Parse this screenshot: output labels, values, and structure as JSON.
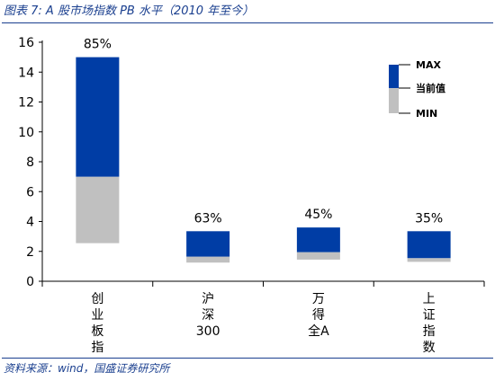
{
  "title": "图表 7:  A 股市场指数 PB 水平（2010 年至今）",
  "source": "资料来源：wind，国盛证券研究所",
  "colors": {
    "upper": "#003da5",
    "lower": "#c0c0c0",
    "title": "#1a3f8f"
  },
  "chart_data": {
    "type": "bar",
    "subtype": "floating-range-split-at-current",
    "categories": [
      "创业板指",
      "沪深300",
      "万得全A",
      "上证指数"
    ],
    "x_tick_labels": [
      [
        "创",
        "业",
        "板",
        "指"
      ],
      [
        "沪",
        "深",
        "300"
      ],
      [
        "万",
        "得",
        "全A"
      ],
      [
        "上",
        "证",
        "指",
        "数"
      ]
    ],
    "max": [
      15.0,
      3.35,
      3.6,
      3.35
    ],
    "current": [
      7.0,
      1.65,
      1.95,
      1.55
    ],
    "min": [
      2.55,
      1.25,
      1.45,
      1.3
    ],
    "percentile_labels": [
      "85%",
      "63%",
      "45%",
      "35%"
    ],
    "ylim": [
      0,
      16
    ],
    "yticks": [
      0,
      2,
      4,
      6,
      8,
      10,
      12,
      14,
      16
    ],
    "grid": false,
    "legend": {
      "position": "top-right",
      "labels": {
        "max": "MAX",
        "current": "当前值",
        "min": "MIN"
      }
    }
  }
}
